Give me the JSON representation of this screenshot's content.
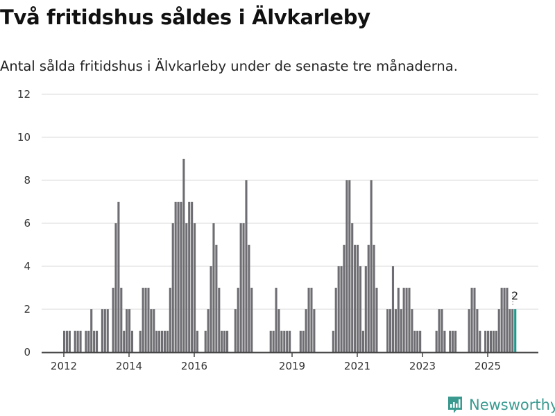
{
  "header": {
    "title": "Två fritidshus såldes i Älvkarleby",
    "subtitle": "Antal sålda fritidshus i Älvkarleby under de senaste tre månaderna."
  },
  "logo": {
    "text": "Newsworthy",
    "icon": "bar-chart-speech-icon"
  },
  "colors": {
    "bar": "#6e6d72",
    "highlight": "#1a9a8e",
    "grid": "#e0e0e0",
    "axis": "#444444",
    "brand": "#3a9a90"
  },
  "chart_data": {
    "type": "bar",
    "title": "Två fritidshus såldes i Älvkarleby",
    "subtitle": "Antal sålda fritidshus i Älvkarleby under de senaste tre månaderna.",
    "xlabel": "",
    "ylabel": "",
    "frequency": "monthly",
    "start_month": "2012-01",
    "end_month": "2025-11",
    "ylim": [
      0,
      12
    ],
    "yticks": [
      0,
      2,
      4,
      6,
      8,
      10,
      12
    ],
    "xticks": [
      "2012",
      "2014",
      "2016",
      "2019",
      "2021",
      "2023",
      "2025"
    ],
    "grid": true,
    "values": [
      1,
      1,
      1,
      0,
      1,
      1,
      1,
      0,
      1,
      1,
      2,
      1,
      1,
      0,
      2,
      2,
      2,
      0,
      3,
      6,
      7,
      3,
      1,
      2,
      2,
      1,
      0,
      0,
      1,
      3,
      3,
      3,
      2,
      2,
      1,
      1,
      1,
      1,
      1,
      3,
      6,
      7,
      7,
      7,
      9,
      6,
      7,
      7,
      6,
      1,
      0,
      0,
      1,
      2,
      4,
      6,
      5,
      3,
      1,
      1,
      1,
      0,
      0,
      2,
      3,
      6,
      6,
      8,
      5,
      3,
      0,
      0,
      0,
      0,
      0,
      0,
      1,
      1,
      3,
      2,
      1,
      1,
      1,
      1,
      0,
      0,
      0,
      1,
      1,
      2,
      3,
      3,
      2,
      0,
      0,
      0,
      0,
      0,
      0,
      1,
      3,
      4,
      4,
      5,
      8,
      8,
      6,
      5,
      5,
      4,
      1,
      4,
      5,
      8,
      5,
      3,
      0,
      0,
      0,
      2,
      2,
      4,
      2,
      3,
      2,
      3,
      3,
      3,
      2,
      1,
      1,
      1,
      0,
      0,
      0,
      0,
      0,
      1,
      2,
      2,
      1,
      0,
      1,
      1,
      1,
      0,
      0,
      0,
      0,
      2,
      3,
      3,
      2,
      1,
      0,
      1,
      1,
      1,
      1,
      1,
      2,
      3,
      3,
      3,
      2,
      2,
      2
    ],
    "highlight_last": true,
    "annotation": "2"
  }
}
